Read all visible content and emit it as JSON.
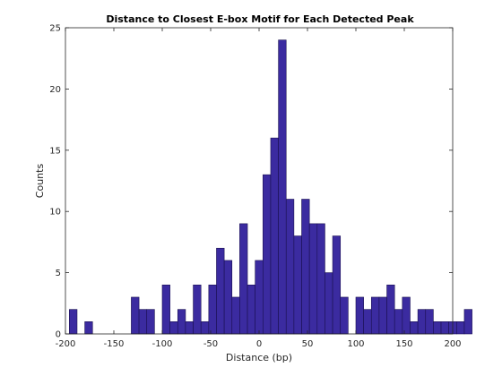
{
  "chart_data": {
    "type": "bar",
    "title": "Distance to Closest E-box Motif for Each Detected Peak",
    "xlabel": "Distance (bp)",
    "ylabel": "Counts",
    "xlim": [
      -200,
      200
    ],
    "ylim": [
      0,
      25
    ],
    "xticks": [
      "-200",
      "-150",
      "-100",
      "-50",
      "0",
      "50",
      "100",
      "150",
      "200"
    ],
    "yticks": [
      "0",
      "5",
      "10",
      "15",
      "20",
      "25"
    ],
    "grid": false,
    "bin_width": 8,
    "bin_start": -196,
    "values": [
      2,
      0,
      1,
      0,
      0,
      0,
      0,
      0,
      3,
      2,
      2,
      0,
      4,
      1,
      2,
      1,
      4,
      1,
      4,
      7,
      6,
      3,
      9,
      4,
      6,
      13,
      16,
      24,
      11,
      8,
      11,
      9,
      9,
      5,
      8,
      3,
      0,
      3,
      2,
      3,
      3,
      4,
      2,
      3,
      1,
      2,
      2,
      1,
      1,
      1,
      1,
      2
    ],
    "bar_color": "#3b2ba0",
    "edge_color": "#1a1050"
  }
}
